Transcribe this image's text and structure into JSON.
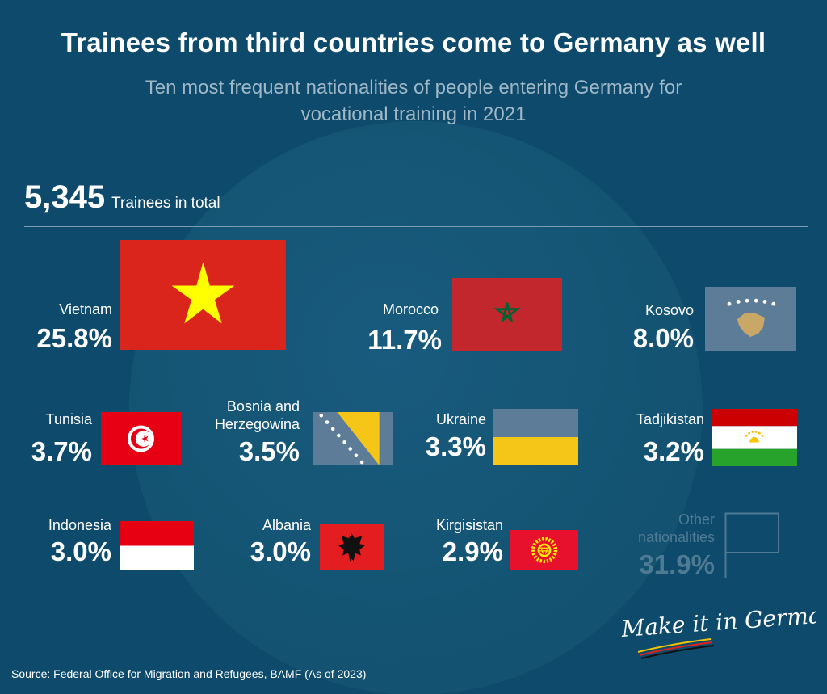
{
  "title": "Trainees from third countries come to Germany as well",
  "subtitle": "Ten most frequent nationalities of people entering Germany for vocational training in 2021",
  "total": {
    "value": "5,345",
    "label": "Trainees in total"
  },
  "chart_data": {
    "type": "table",
    "title": "Trainees from third countries come to Germany as well",
    "subtitle": "Ten most frequent nationalities of people entering Germany for vocational training in 2021",
    "total": 5345,
    "unit": "%",
    "categories": [
      "Vietnam",
      "Morocco",
      "Kosovo",
      "Tunisia",
      "Bosnia and Herzegowina",
      "Ukraine",
      "Tadjikistan",
      "Indonesia",
      "Albania",
      "Kirgisistan",
      "Other nationalities"
    ],
    "values": [
      25.8,
      11.7,
      8.0,
      3.7,
      3.5,
      3.3,
      3.2,
      3.0,
      3.0,
      2.9,
      31.9
    ]
  },
  "items": [
    {
      "country": "Vietnam",
      "pct": "25.8%",
      "flag": "vietnam-flag"
    },
    {
      "country": "Morocco",
      "pct": "11.7%",
      "flag": "morocco-flag"
    },
    {
      "country": "Kosovo",
      "pct": "8.0%",
      "flag": "kosovo-flag"
    },
    {
      "country": "Tunisia",
      "pct": "3.7%",
      "flag": "tunisia-flag"
    },
    {
      "country": "Bosnia and\nHerzegowina",
      "pct": "3.5%",
      "flag": "bosnia-flag"
    },
    {
      "country": "Ukraine",
      "pct": "3.3%",
      "flag": "ukraine-flag"
    },
    {
      "country": "Tadjikistan",
      "pct": "3.2%",
      "flag": "tajikistan-flag"
    },
    {
      "country": "Indonesia",
      "pct": "3.0%",
      "flag": "indonesia-flag"
    },
    {
      "country": "Albania",
      "pct": "3.0%",
      "flag": "albania-flag"
    },
    {
      "country": "Kirgisistan",
      "pct": "2.9%",
      "flag": "kyrgyzstan-flag"
    },
    {
      "country": "Other\nnationalities",
      "pct": "31.9%",
      "flag": "blank-flag"
    }
  ],
  "colors": {
    "background": "#0d4a6b",
    "muted_text": "#4f7a93",
    "subtitle_text": "#9fb7c6"
  },
  "source": "Source: Federal Office for Migration and Refugees, BAMF (As of 2023)",
  "brand": "Make it in Germany"
}
